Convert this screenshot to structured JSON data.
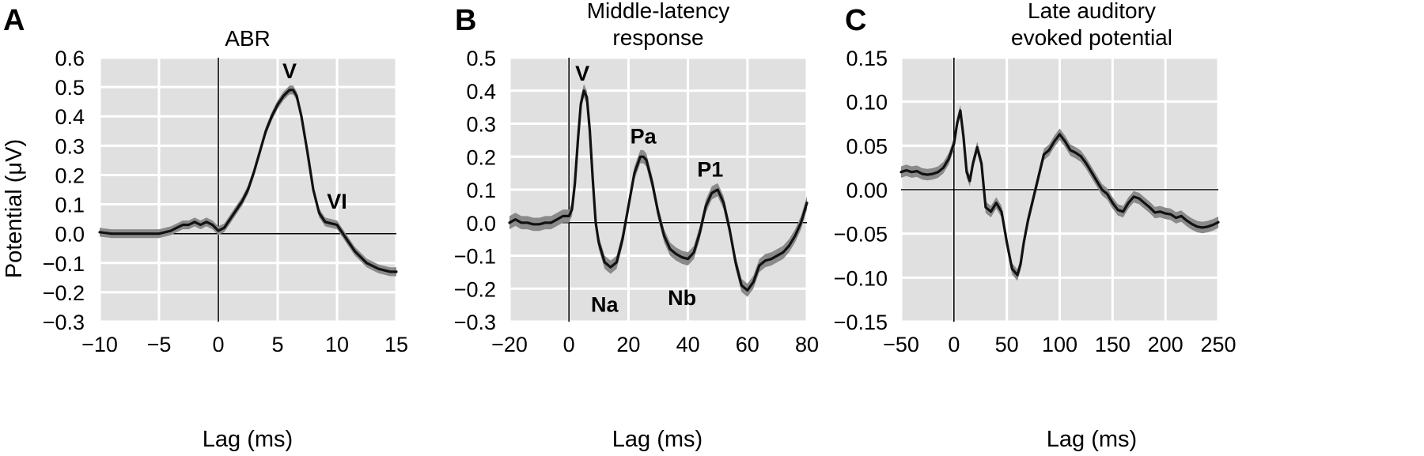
{
  "chart_data": [
    {
      "type": "line",
      "panel_letter": "A",
      "title": "ABR",
      "xlabel": "Lag (ms)",
      "ylabel": "Potential (μV)",
      "xlim": [
        -10,
        15
      ],
      "ylim": [
        -0.3,
        0.6
      ],
      "xticks": [
        -10,
        -5,
        0,
        5,
        10,
        15
      ],
      "xtick_labels": [
        "−10",
        "−5",
        "0",
        "5",
        "10",
        "15"
      ],
      "yticks": [
        -0.3,
        -0.2,
        -0.1,
        0.0,
        0.1,
        0.2,
        0.3,
        0.4,
        0.5,
        0.6
      ],
      "ytick_labels": [
        "−0.3",
        "−0.2",
        "−0.1",
        "0.0",
        "0.1",
        "0.2",
        "0.3",
        "0.4",
        "0.5",
        "0.6"
      ],
      "grid": true,
      "background": "#e0e0e0",
      "line_color": "#111111",
      "band_color": "#8a8a8a",
      "series": [
        {
          "x": [
            -10,
            -9,
            -8,
            -7,
            -6,
            -5,
            -4,
            -3.5,
            -3,
            -2.5,
            -2,
            -1.5,
            -1,
            -0.5,
            0,
            0.5,
            1,
            1.5,
            2,
            2.5,
            3,
            3.5,
            4,
            4.5,
            5,
            5.5,
            6,
            6.3,
            6.6,
            7,
            7.5,
            8,
            8.5,
            9,
            9.5,
            10,
            10.5,
            11,
            11.5,
            12,
            12.5,
            13,
            13.5,
            14,
            14.5,
            15
          ],
          "y": [
            0.005,
            0.0,
            0.0,
            0.0,
            0.0,
            0.0,
            0.01,
            0.02,
            0.03,
            0.03,
            0.04,
            0.03,
            0.04,
            0.03,
            0.01,
            0.02,
            0.05,
            0.08,
            0.11,
            0.15,
            0.21,
            0.28,
            0.35,
            0.4,
            0.44,
            0.47,
            0.49,
            0.49,
            0.47,
            0.4,
            0.28,
            0.15,
            0.07,
            0.04,
            0.035,
            0.03,
            0.0,
            -0.03,
            -0.06,
            -0.08,
            -0.1,
            -0.11,
            -0.12,
            -0.125,
            -0.13,
            -0.13
          ],
          "band": 0.015
        }
      ],
      "annotations": [
        {
          "text": "V",
          "x": 6.0,
          "y": 0.53
        },
        {
          "text": "VI",
          "x": 10.0,
          "y": 0.085
        }
      ]
    },
    {
      "type": "line",
      "panel_letter": "B",
      "title": "Middle-latency\nresponse",
      "xlabel": "Lag (ms)",
      "ylabel": "",
      "xlim": [
        -20,
        80
      ],
      "ylim": [
        -0.3,
        0.5
      ],
      "xticks": [
        -20,
        0,
        20,
        40,
        60,
        80
      ],
      "xtick_labels": [
        "−20",
        "0",
        "20",
        "40",
        "60",
        "80"
      ],
      "yticks": [
        -0.3,
        -0.2,
        -0.1,
        0.0,
        0.1,
        0.2,
        0.3,
        0.4,
        0.5
      ],
      "ytick_labels": [
        "−0.3",
        "−0.2",
        "−0.1",
        "0.0",
        "0.1",
        "0.2",
        "0.3",
        "0.4",
        "0.5"
      ],
      "grid": true,
      "background": "#e0e0e0",
      "line_color": "#111111",
      "band_color": "#8a8a8a",
      "series": [
        {
          "x": [
            -20,
            -18,
            -16,
            -14,
            -12,
            -10,
            -8,
            -6,
            -4,
            -2,
            0,
            1,
            2,
            3,
            4,
            5,
            6,
            7,
            8,
            9,
            10,
            12,
            14,
            16,
            18,
            20,
            22,
            24,
            25,
            26,
            28,
            30,
            32,
            34,
            36,
            38,
            40,
            42,
            44,
            46,
            48,
            50,
            52,
            54,
            56,
            58,
            60,
            62,
            64,
            66,
            68,
            70,
            72,
            74,
            76,
            78,
            80
          ],
          "y": [
            0.0,
            0.01,
            0.0,
            0.0,
            -0.005,
            -0.005,
            0.0,
            0.0,
            0.01,
            0.02,
            0.02,
            0.04,
            0.12,
            0.25,
            0.36,
            0.4,
            0.38,
            0.28,
            0.13,
            0.0,
            -0.06,
            -0.12,
            -0.135,
            -0.12,
            -0.05,
            0.05,
            0.15,
            0.2,
            0.2,
            0.19,
            0.12,
            0.03,
            -0.04,
            -0.08,
            -0.095,
            -0.105,
            -0.11,
            -0.09,
            -0.03,
            0.05,
            0.09,
            0.1,
            0.06,
            -0.02,
            -0.12,
            -0.19,
            -0.205,
            -0.18,
            -0.13,
            -0.115,
            -0.11,
            -0.1,
            -0.09,
            -0.07,
            -0.04,
            0.0,
            0.06
          ],
          "band": 0.02
        }
      ],
      "annotations": [
        {
          "text": "V",
          "x": 4.5,
          "y": 0.43
        },
        {
          "text": "Pa",
          "x": 25.0,
          "y": 0.24
        },
        {
          "text": "P1",
          "x": 47.5,
          "y": 0.14
        },
        {
          "text": "Na",
          "x": 12.0,
          "y": -0.27
        },
        {
          "text": "Nb",
          "x": 38.0,
          "y": -0.25
        }
      ]
    },
    {
      "type": "line",
      "panel_letter": "C",
      "title": "Late auditory\nevoked potential",
      "xlabel": "Lag (ms)",
      "ylabel": "",
      "xlim": [
        -50,
        250
      ],
      "ylim": [
        -0.15,
        0.15
      ],
      "xticks": [
        -50,
        0,
        50,
        100,
        150,
        200,
        250
      ],
      "xtick_labels": [
        "−50",
        "0",
        "50",
        "100",
        "150",
        "200",
        "250"
      ],
      "yticks": [
        -0.15,
        -0.1,
        -0.05,
        0.0,
        0.05,
        0.1,
        0.15
      ],
      "ytick_labels": [
        "−0.15",
        "−0.10",
        "−0.05",
        "0.00",
        "0.05",
        "0.10",
        "0.15"
      ],
      "grid": true,
      "background": "#e0e0e0",
      "line_color": "#111111",
      "band_color": "#8a8a8a",
      "series": [
        {
          "x": [
            -50,
            -45,
            -40,
            -35,
            -30,
            -25,
            -20,
            -15,
            -10,
            -5,
            0,
            3,
            6,
            9,
            12,
            15,
            18,
            22,
            26,
            30,
            35,
            40,
            45,
            50,
            55,
            60,
            63,
            66,
            70,
            75,
            80,
            85,
            90,
            95,
            100,
            105,
            110,
            115,
            120,
            125,
            130,
            135,
            140,
            145,
            150,
            155,
            160,
            165,
            170,
            175,
            180,
            185,
            190,
            195,
            200,
            205,
            210,
            215,
            220,
            225,
            230,
            235,
            240,
            245,
            250
          ],
          "y": [
            0.02,
            0.022,
            0.02,
            0.021,
            0.018,
            0.017,
            0.018,
            0.02,
            0.025,
            0.035,
            0.052,
            0.075,
            0.09,
            0.06,
            0.02,
            0.01,
            0.03,
            0.048,
            0.03,
            -0.02,
            -0.025,
            -0.015,
            -0.025,
            -0.06,
            -0.09,
            -0.097,
            -0.085,
            -0.06,
            -0.035,
            -0.01,
            0.015,
            0.04,
            0.045,
            0.055,
            0.063,
            0.055,
            0.045,
            0.042,
            0.038,
            0.03,
            0.02,
            0.01,
            0.0,
            -0.005,
            -0.015,
            -0.023,
            -0.025,
            -0.015,
            -0.008,
            -0.01,
            -0.015,
            -0.02,
            -0.026,
            -0.025,
            -0.027,
            -0.028,
            -0.032,
            -0.03,
            -0.035,
            -0.039,
            -0.042,
            -0.043,
            -0.042,
            -0.04,
            -0.037
          ],
          "band": 0.0065
        }
      ],
      "annotations": []
    }
  ]
}
